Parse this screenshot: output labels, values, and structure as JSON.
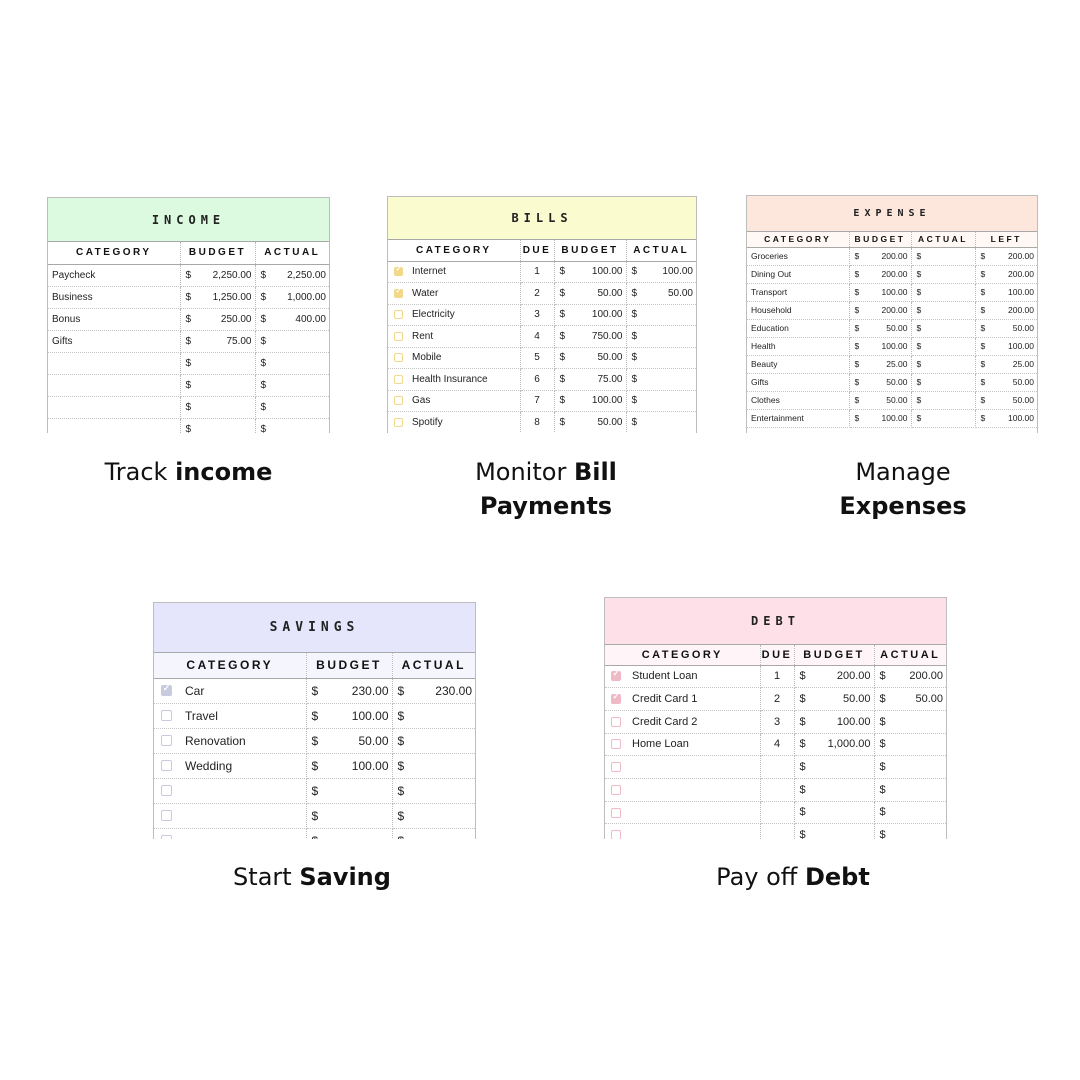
{
  "colors": {
    "income": "#dcfadf",
    "bills": "#fbfbd0",
    "expense": "#fde6dc",
    "savings": "#e5e6fb",
    "debt": "#fde0e8",
    "bills_check": "#f2d98a",
    "savings_check": "#c8cadf",
    "debt_check": "#f0b9c6"
  },
  "income": {
    "title": "INCOME",
    "headers": [
      "CATEGORY",
      "BUDGET",
      "ACTUAL"
    ],
    "currency": "$",
    "rows": [
      {
        "category": "Paycheck",
        "budget": "2,250.00",
        "actual": "2,250.00"
      },
      {
        "category": "Business",
        "budget": "1,250.00",
        "actual": "1,000.00"
      },
      {
        "category": "Bonus",
        "budget": "250.00",
        "actual": "400.00"
      },
      {
        "category": "Gifts",
        "budget": "75.00",
        "actual": ""
      },
      {
        "category": "",
        "budget": "",
        "actual": ""
      },
      {
        "category": "",
        "budget": "",
        "actual": ""
      },
      {
        "category": "",
        "budget": "",
        "actual": ""
      },
      {
        "category": "",
        "budget": "",
        "actual": ""
      }
    ],
    "caption_prefix": "Track ",
    "caption_bold": "income"
  },
  "bills": {
    "title": "BILLS",
    "headers": [
      "CATEGORY",
      "DUE",
      "BUDGET",
      "ACTUAL"
    ],
    "currency": "$",
    "rows": [
      {
        "checked": true,
        "category": "Internet",
        "due": "1",
        "budget": "100.00",
        "actual": "100.00"
      },
      {
        "checked": true,
        "category": "Water",
        "due": "2",
        "budget": "50.00",
        "actual": "50.00"
      },
      {
        "checked": false,
        "category": "Electricity",
        "due": "3",
        "budget": "100.00",
        "actual": ""
      },
      {
        "checked": false,
        "category": "Rent",
        "due": "4",
        "budget": "750.00",
        "actual": ""
      },
      {
        "checked": false,
        "category": "Mobile",
        "due": "5",
        "budget": "50.00",
        "actual": ""
      },
      {
        "checked": false,
        "category": "Health Insurance",
        "due": "6",
        "budget": "75.00",
        "actual": ""
      },
      {
        "checked": false,
        "category": "Gas",
        "due": "7",
        "budget": "100.00",
        "actual": ""
      },
      {
        "checked": false,
        "category": "Spotify",
        "due": "8",
        "budget": "50.00",
        "actual": ""
      }
    ],
    "caption_prefix": "Monitor ",
    "caption_bold_1": "Bill",
    "caption_bold_2": "Payments"
  },
  "expense": {
    "title": "EXPENSE",
    "headers": [
      "CATEGORY",
      "BUDGET",
      "ACTUAL",
      "LEFT"
    ],
    "currency": "$",
    "rows": [
      {
        "category": "Groceries",
        "budget": "200.00",
        "actual": "",
        "left": "200.00"
      },
      {
        "category": "Dining Out",
        "budget": "200.00",
        "actual": "",
        "left": "200.00"
      },
      {
        "category": "Transport",
        "budget": "100.00",
        "actual": "",
        "left": "100.00"
      },
      {
        "category": "Household",
        "budget": "200.00",
        "actual": "",
        "left": "200.00"
      },
      {
        "category": "Education",
        "budget": "50.00",
        "actual": "",
        "left": "50.00"
      },
      {
        "category": "Health",
        "budget": "100.00",
        "actual": "",
        "left": "100.00"
      },
      {
        "category": "Beauty",
        "budget": "25.00",
        "actual": "",
        "left": "25.00"
      },
      {
        "category": "Gifts",
        "budget": "50.00",
        "actual": "",
        "left": "50.00"
      },
      {
        "category": "Clothes",
        "budget": "50.00",
        "actual": "",
        "left": "50.00"
      },
      {
        "category": "Entertainment",
        "budget": "100.00",
        "actual": "",
        "left": "100.00"
      }
    ],
    "caption_prefix": "Manage",
    "caption_bold": "Expenses"
  },
  "savings": {
    "title": "SAVINGS",
    "headers": [
      "CATEGORY",
      "BUDGET",
      "ACTUAL"
    ],
    "currency": "$",
    "rows": [
      {
        "checked": true,
        "category": "Car",
        "budget": "230.00",
        "actual": "230.00"
      },
      {
        "checked": false,
        "category": "Travel",
        "budget": "100.00",
        "actual": ""
      },
      {
        "checked": false,
        "category": "Renovation",
        "budget": "50.00",
        "actual": ""
      },
      {
        "checked": false,
        "category": "Wedding",
        "budget": "100.00",
        "actual": ""
      },
      {
        "checked": false,
        "category": "",
        "budget": "",
        "actual": ""
      },
      {
        "checked": false,
        "category": "",
        "budget": "",
        "actual": ""
      },
      {
        "checked": false,
        "category": "",
        "budget": "",
        "actual": ""
      }
    ],
    "caption_prefix": "Start ",
    "caption_bold": "Saving"
  },
  "debt": {
    "title": "DEBT",
    "headers": [
      "CATEGORY",
      "DUE",
      "BUDGET",
      "ACTUAL"
    ],
    "currency": "$",
    "rows": [
      {
        "checked": true,
        "category": "Student Loan",
        "due": "1",
        "budget": "200.00",
        "actual": "200.00"
      },
      {
        "checked": true,
        "category": "Credit Card 1",
        "due": "2",
        "budget": "50.00",
        "actual": "50.00"
      },
      {
        "checked": false,
        "category": "Credit Card 2",
        "due": "3",
        "budget": "100.00",
        "actual": ""
      },
      {
        "checked": false,
        "category": "Home Loan",
        "due": "4",
        "budget": "1,000.00",
        "actual": ""
      },
      {
        "checked": false,
        "category": "",
        "due": "",
        "budget": "",
        "actual": ""
      },
      {
        "checked": false,
        "category": "",
        "due": "",
        "budget": "",
        "actual": ""
      },
      {
        "checked": false,
        "category": "",
        "due": "",
        "budget": "",
        "actual": ""
      },
      {
        "checked": false,
        "category": "",
        "due": "",
        "budget": "",
        "actual": ""
      }
    ],
    "caption_prefix": "Pay off ",
    "caption_bold": "Debt"
  }
}
